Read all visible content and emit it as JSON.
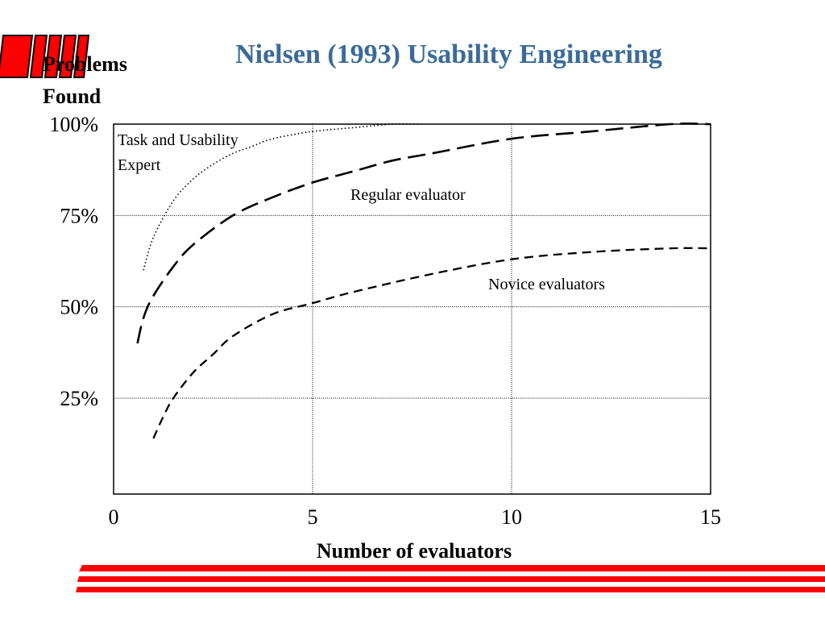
{
  "slide": {
    "title": "Nielsen (1993) Usability Engineering",
    "colors": {
      "title": "#3a6a9a",
      "accent": "#ff0000",
      "axis": "#000000"
    },
    "logo_icon": "red-stripes-logo-icon"
  },
  "chart_data": {
    "type": "line",
    "title": "",
    "ylabel_lines": [
      "Problems",
      "Found"
    ],
    "xlabel": "Number of evaluators",
    "xlim": [
      0,
      15
    ],
    "ylim": [
      0,
      100
    ],
    "x_ticks": [
      0,
      5,
      10,
      15
    ],
    "x_tick_labels": [
      "0",
      "5",
      "10",
      "15"
    ],
    "y_ticks": [
      25,
      50,
      75,
      100
    ],
    "y_tick_labels": [
      "25%",
      "50%",
      "75%",
      "100%"
    ],
    "grid": true,
    "series": [
      {
        "name": "Task and Usability Expert",
        "style": "dotted",
        "x": [
          0.75,
          1,
          1.5,
          2,
          2.5,
          3,
          3.5,
          4,
          5,
          6,
          7,
          7.7
        ],
        "y": [
          60,
          69,
          79,
          85,
          89,
          92,
          94,
          96,
          98,
          99,
          100,
          100
        ]
      },
      {
        "name": "Regular evaluator",
        "style": "long-dash",
        "x": [
          0.6,
          0.75,
          1,
          1.5,
          2,
          3,
          4,
          5,
          6,
          7,
          8,
          10,
          12,
          14,
          15
        ],
        "y": [
          40,
          47,
          53,
          61,
          67,
          75,
          80,
          84,
          87,
          90,
          92,
          96,
          98,
          100,
          100
        ]
      },
      {
        "name": "Novice evaluators",
        "style": "dash",
        "x": [
          1,
          1.25,
          1.5,
          2,
          2.5,
          3,
          4,
          5,
          6,
          8,
          10,
          12,
          14,
          15
        ],
        "y": [
          14,
          20,
          25,
          32,
          37,
          42,
          48,
          51,
          54,
          59,
          63,
          65,
          66,
          66
        ]
      }
    ]
  }
}
